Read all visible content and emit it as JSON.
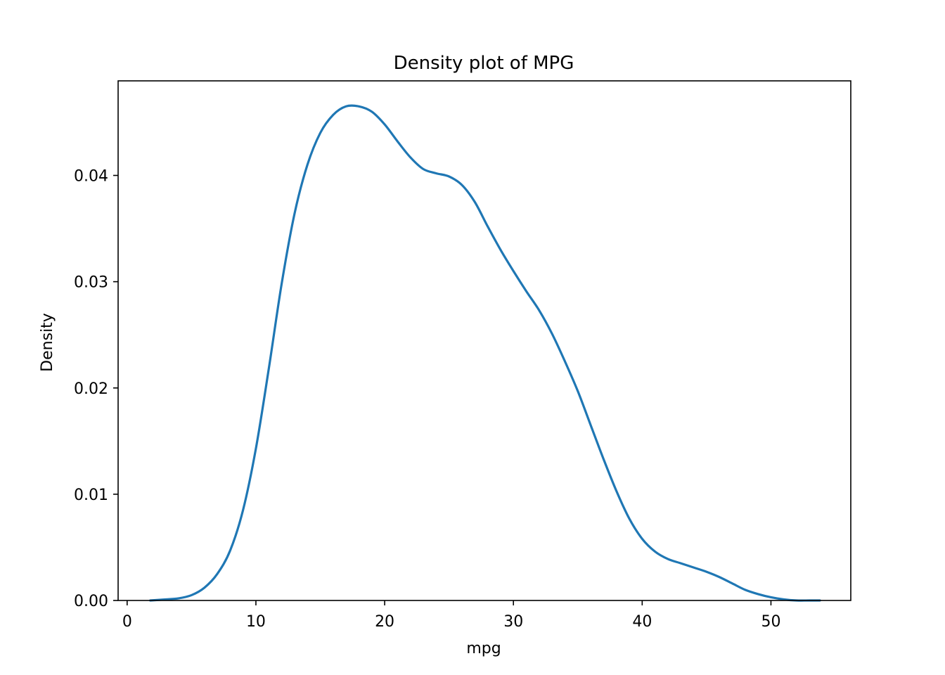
{
  "chart_data": {
    "type": "line",
    "title": "Density plot of MPG",
    "xlabel": "mpg",
    "ylabel": "Density",
    "xlim": [
      -0.7,
      56.2
    ],
    "ylim": [
      0,
      0.0489
    ],
    "x_ticks": [
      0,
      10,
      20,
      30,
      40,
      50
    ],
    "x_tick_labels": [
      "0",
      "10",
      "20",
      "30",
      "40",
      "50"
    ],
    "y_ticks": [
      0,
      0.01,
      0.02,
      0.03,
      0.04
    ],
    "y_tick_labels": [
      "0.00",
      "0.01",
      "0.02",
      "0.03",
      "0.04"
    ],
    "grid": false,
    "series": [
      {
        "color": "#1f77b4",
        "x": [
          1.8,
          3,
          4,
          5,
          6,
          7,
          8,
          9,
          10,
          11,
          12,
          13,
          14,
          15,
          16,
          17,
          18,
          19,
          20,
          21,
          22,
          23,
          24,
          25,
          26,
          27,
          28,
          29,
          30,
          31,
          32,
          33,
          34,
          35,
          36,
          37,
          38,
          39,
          40,
          41,
          42,
          43,
          44,
          45,
          46,
          47,
          48,
          49,
          50,
          51,
          52,
          53,
          53.8
        ],
        "y": [
          0.0,
          0.0001,
          0.0002,
          0.0005,
          0.0012,
          0.0025,
          0.0047,
          0.0085,
          0.0143,
          0.0218,
          0.0298,
          0.0364,
          0.041,
          0.044,
          0.0457,
          0.0465,
          0.0465,
          0.046,
          0.0448,
          0.0432,
          0.0417,
          0.0406,
          0.0402,
          0.0399,
          0.0391,
          0.0375,
          0.0352,
          0.033,
          0.031,
          0.0291,
          0.0273,
          0.0251,
          0.0225,
          0.0197,
          0.0165,
          0.0133,
          0.0103,
          0.0077,
          0.0058,
          0.0046,
          0.0039,
          0.0035,
          0.0031,
          0.0027,
          0.0022,
          0.0016,
          0.001,
          0.0006,
          0.0003,
          0.0001,
          0.0,
          0.0,
          0.0
        ]
      }
    ]
  }
}
